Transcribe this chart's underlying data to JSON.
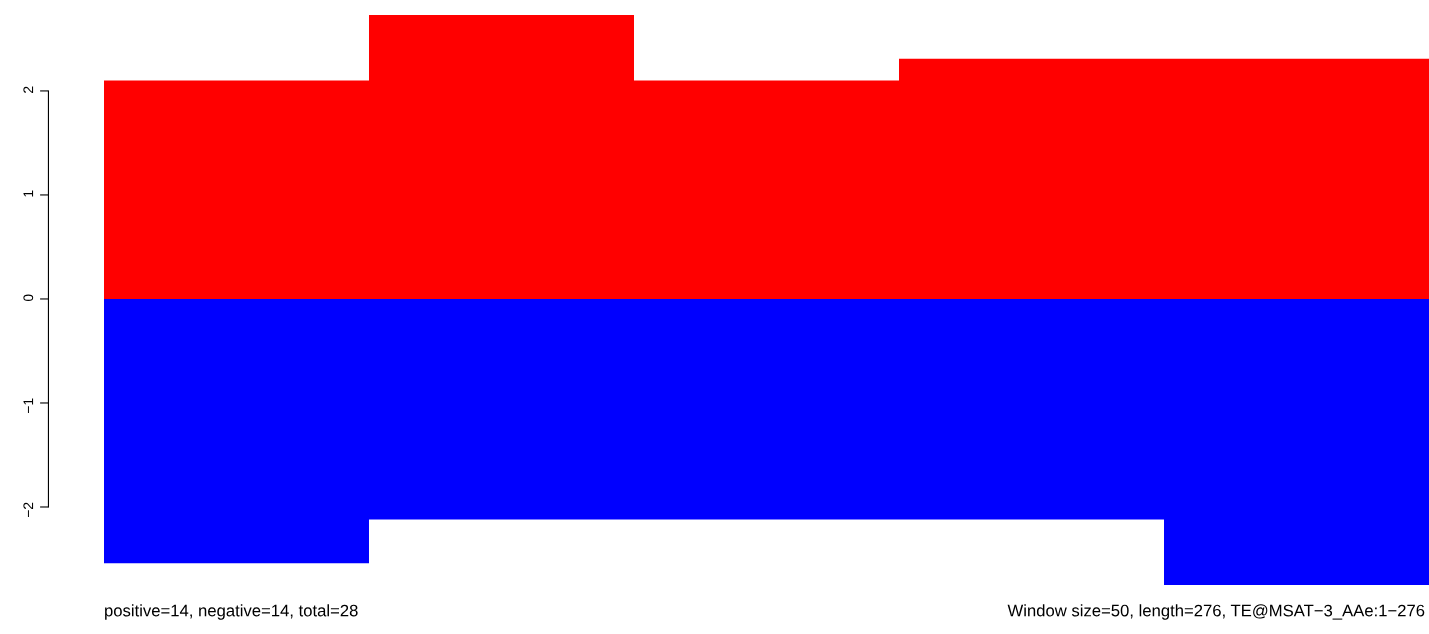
{
  "chart_data": {
    "type": "bar",
    "categories": [
      null,
      null,
      null,
      null,
      null
    ],
    "series": [
      {
        "color": "#ff0000",
        "values": [
          2.1,
          2.73,
          2.1,
          2.31,
          2.31
        ]
      },
      {
        "color": "#0000ff",
        "values": [
          -2.54,
          -2.12,
          -2.12,
          -2.12,
          -2.75
        ]
      }
    ],
    "ylim": [
      -2.75,
      2.73
    ],
    "yticks": [
      {
        "value": -2,
        "label": "−2"
      },
      {
        "value": -1,
        "label": "−1"
      },
      {
        "value": 0,
        "label": "0"
      },
      {
        "value": 1,
        "label": "1"
      },
      {
        "value": 2,
        "label": "2"
      }
    ],
    "tick_labels": "y",
    "stacked": true,
    "grid": false,
    "legend": false,
    "annotations": [
      "positive=14, negative=14, total=28",
      "Window size=50, length=276, TE@MSAT−3_AAe:1−276"
    ]
  }
}
